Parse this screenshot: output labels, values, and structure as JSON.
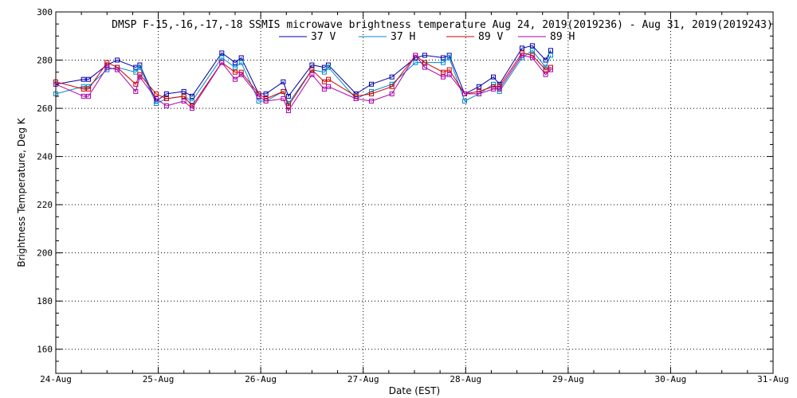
{
  "chart_data": {
    "type": "line",
    "title": "DMSP F-15,-16,-17,-18 SSMIS microwave brightness temperature Aug 24, 2019(2019236) - Aug 31, 2019(2019243)",
    "xlabel": "Date (EST)",
    "ylabel": "Brightness Temperature, Deg K",
    "xlim": [
      0,
      7
    ],
    "ylim": [
      150,
      300
    ],
    "x_tick_labels": [
      "24-Aug",
      "25-Aug",
      "26-Aug",
      "27-Aug",
      "28-Aug",
      "29-Aug",
      "30-Aug",
      "31-Aug"
    ],
    "y_ticks": [
      160,
      180,
      200,
      220,
      240,
      260,
      280,
      300
    ],
    "grid": true,
    "legend_position": "top-center",
    "series": [
      {
        "name": "37 V",
        "color": "#0000aa",
        "x": [
          0.0,
          0.27,
          0.32,
          0.5,
          0.6,
          0.78,
          0.82,
          0.98,
          1.08,
          1.25,
          1.33,
          1.62,
          1.75,
          1.81,
          1.98,
          2.05,
          2.22,
          2.27,
          2.5,
          2.62,
          2.66,
          2.93,
          3.08,
          3.28,
          3.51,
          3.6,
          3.78,
          3.84,
          3.99,
          4.13,
          4.27,
          4.33,
          4.55,
          4.65,
          4.78,
          4.83
        ],
        "y": [
          270,
          272,
          272,
          278,
          280,
          277,
          278,
          263,
          266,
          267,
          265,
          283,
          279,
          281,
          266,
          266,
          271,
          265,
          278,
          277,
          278,
          266,
          270,
          273,
          281,
          282,
          281,
          282,
          266,
          269,
          273,
          270,
          285,
          286,
          280,
          284
        ]
      },
      {
        "name": "37 H",
        "color": "#0088cc",
        "x": [
          0.0,
          0.27,
          0.32,
          0.5,
          0.6,
          0.78,
          0.82,
          0.98,
          1.08,
          1.25,
          1.33,
          1.62,
          1.75,
          1.81,
          1.98,
          2.05,
          2.22,
          2.27,
          2.5,
          2.62,
          2.66,
          2.93,
          3.08,
          3.28,
          3.51,
          3.6,
          3.78,
          3.84,
          3.99,
          4.13,
          4.27,
          4.33,
          4.55,
          4.65,
          4.78,
          4.83
        ],
        "y": [
          266,
          269,
          269,
          276,
          277,
          275,
          277,
          262,
          264,
          265,
          263,
          281,
          277,
          279,
          263,
          263,
          267,
          262,
          276,
          275,
          277,
          264,
          267,
          270,
          279,
          279,
          279,
          281,
          263,
          266,
          270,
          267,
          281,
          284,
          277,
          282
        ]
      },
      {
        "name": "89 V",
        "color": "#cc0000",
        "x": [
          0.0,
          0.27,
          0.32,
          0.5,
          0.6,
          0.78,
          0.82,
          0.98,
          1.08,
          1.25,
          1.33,
          1.62,
          1.75,
          1.81,
          1.98,
          2.05,
          2.22,
          2.27,
          2.5,
          2.62,
          2.66,
          2.93,
          3.08,
          3.28,
          3.51,
          3.6,
          3.78,
          3.84,
          3.99,
          4.13,
          4.27,
          4.33,
          4.55,
          4.65,
          4.78,
          4.83
        ],
        "y": [
          271,
          268,
          268,
          279,
          277,
          270,
          274,
          266,
          264,
          265,
          261,
          279,
          275,
          275,
          266,
          264,
          267,
          261,
          276,
          271,
          272,
          265,
          266,
          269,
          282,
          279,
          275,
          276,
          266,
          267,
          269,
          269,
          283,
          282,
          276,
          277
        ]
      },
      {
        "name": "89 H",
        "color": "#aa00aa",
        "x": [
          0.0,
          0.27,
          0.32,
          0.5,
          0.6,
          0.78,
          0.82,
          0.98,
          1.08,
          1.25,
          1.33,
          1.62,
          1.75,
          1.81,
          1.98,
          2.05,
          2.22,
          2.27,
          2.5,
          2.62,
          2.66,
          2.93,
          3.08,
          3.28,
          3.51,
          3.6,
          3.78,
          3.84,
          3.99,
          4.13,
          4.27,
          4.33,
          4.55,
          4.65,
          4.78,
          4.83
        ],
        "y": [
          270,
          265,
          265,
          277,
          276,
          267,
          273,
          264,
          261,
          263,
          260,
          279,
          272,
          274,
          265,
          263,
          264,
          259,
          274,
          268,
          269,
          264,
          263,
          266,
          282,
          277,
          273,
          274,
          266,
          266,
          268,
          268,
          282,
          281,
          274,
          276
        ]
      }
    ]
  }
}
